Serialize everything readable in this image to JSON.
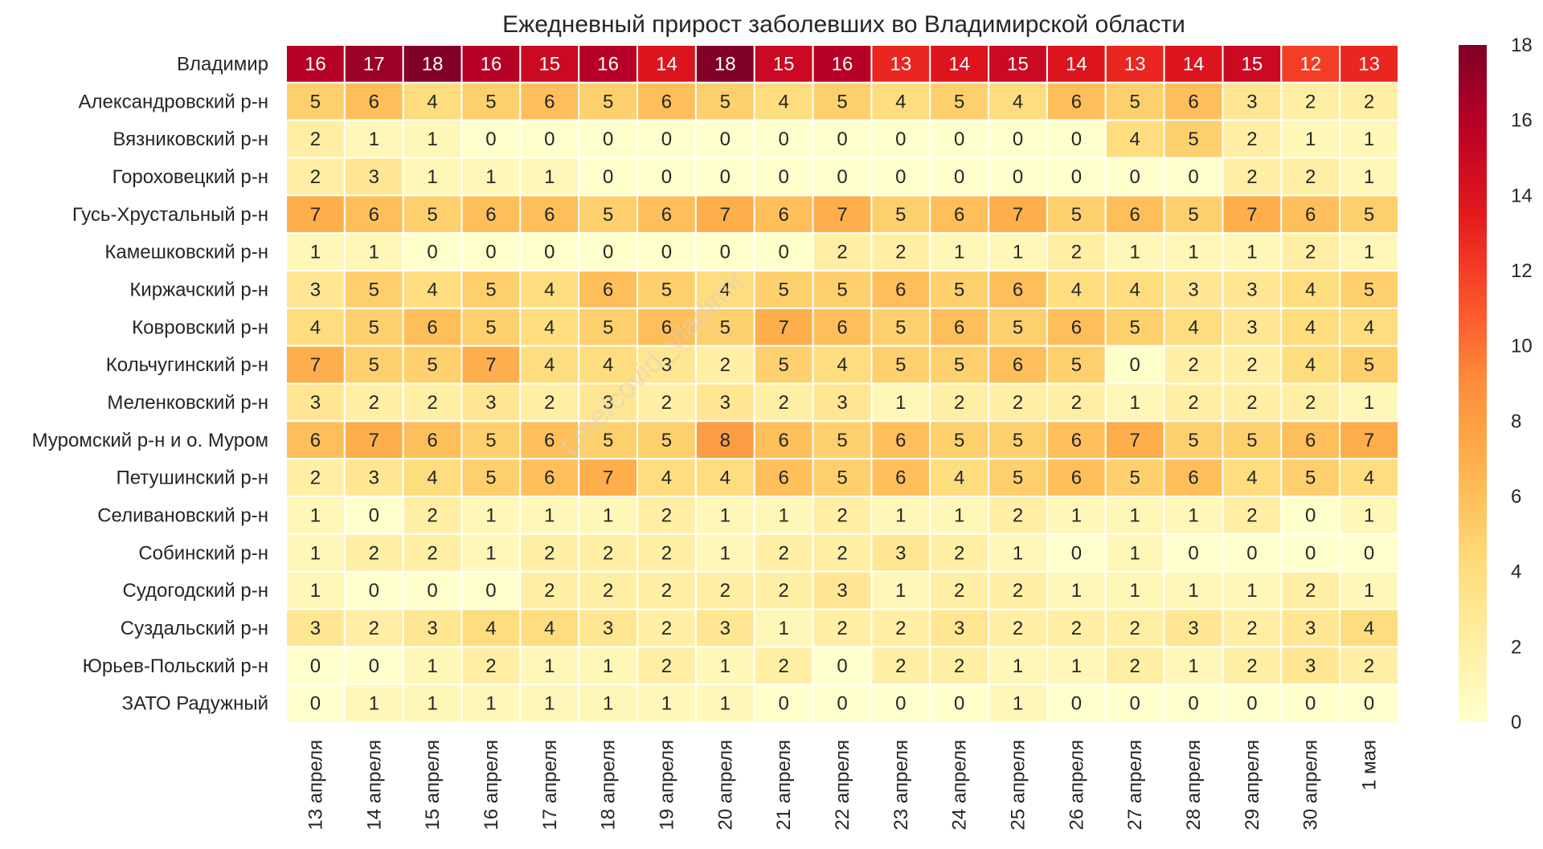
{
  "chart_data": {
    "type": "heatmap",
    "title": "Ежедневный прирост заболевших во Владимирской области",
    "watermark": "t.me/covid_vladimir",
    "x_labels": [
      "13 апреля",
      "14 апреля",
      "15 апреля",
      "16 апреля",
      "17 апреля",
      "18 апреля",
      "19 апреля",
      "20 апреля",
      "21 апреля",
      "22 апреля",
      "23 апреля",
      "24 апреля",
      "25 апреля",
      "26 апреля",
      "27 апреля",
      "28 апреля",
      "29 апреля",
      "30 апреля",
      "1 мая"
    ],
    "y_labels": [
      "Владимир",
      "Александровский р-н",
      "Вязниковский р-н",
      "Гороховецкий р-н",
      "Гусь-Хрустальный р-н",
      "Камешковский р-н",
      "Киржачский р-н",
      "Ковровский р-н",
      "Кольчугинский р-н",
      "Меленковский р-н",
      "Муромский р-н и о. Муром",
      "Петушинский р-н",
      "Селивановский р-н",
      "Собинский р-н",
      "Судогодский р-н",
      "Суздальский р-н",
      "Юрьев-Польский р-н",
      "ЗАТО Радужный"
    ],
    "values": [
      [
        16,
        17,
        18,
        16,
        15,
        16,
        14,
        18,
        15,
        16,
        13,
        14,
        15,
        14,
        13,
        14,
        15,
        12,
        13
      ],
      [
        5,
        6,
        4,
        5,
        6,
        5,
        6,
        5,
        4,
        5,
        4,
        5,
        4,
        6,
        5,
        6,
        3,
        2,
        2
      ],
      [
        2,
        1,
        1,
        0,
        0,
        0,
        0,
        0,
        0,
        0,
        0,
        0,
        0,
        0,
        4,
        5,
        2,
        1,
        1
      ],
      [
        2,
        3,
        1,
        1,
        1,
        0,
        0,
        0,
        0,
        0,
        0,
        0,
        0,
        0,
        0,
        0,
        2,
        2,
        1
      ],
      [
        7,
        6,
        5,
        6,
        6,
        5,
        6,
        7,
        6,
        7,
        5,
        6,
        7,
        5,
        6,
        5,
        7,
        6,
        5
      ],
      [
        1,
        1,
        0,
        0,
        0,
        0,
        0,
        0,
        0,
        2,
        2,
        1,
        1,
        2,
        1,
        1,
        1,
        2,
        1
      ],
      [
        3,
        5,
        4,
        5,
        4,
        6,
        5,
        4,
        5,
        5,
        6,
        5,
        6,
        4,
        4,
        3,
        3,
        4,
        5
      ],
      [
        4,
        5,
        6,
        5,
        4,
        5,
        6,
        5,
        7,
        6,
        5,
        6,
        5,
        6,
        5,
        4,
        3,
        4,
        4
      ],
      [
        7,
        5,
        5,
        7,
        4,
        4,
        3,
        2,
        5,
        4,
        5,
        5,
        6,
        5,
        0,
        2,
        2,
        4,
        5
      ],
      [
        3,
        2,
        2,
        3,
        2,
        3,
        2,
        3,
        2,
        3,
        1,
        2,
        2,
        2,
        1,
        2,
        2,
        2,
        1
      ],
      [
        6,
        7,
        6,
        5,
        6,
        5,
        5,
        8,
        6,
        5,
        6,
        5,
        5,
        6,
        7,
        5,
        5,
        6,
        7
      ],
      [
        2,
        3,
        4,
        5,
        6,
        7,
        4,
        4,
        6,
        5,
        6,
        4,
        5,
        6,
        5,
        6,
        4,
        5,
        4
      ],
      [
        1,
        0,
        2,
        1,
        1,
        1,
        2,
        1,
        1,
        2,
        1,
        1,
        2,
        1,
        1,
        1,
        2,
        0,
        1
      ],
      [
        1,
        2,
        2,
        1,
        2,
        2,
        2,
        1,
        2,
        2,
        3,
        2,
        1,
        0,
        1,
        0,
        0,
        0,
        0
      ],
      [
        1,
        0,
        0,
        0,
        2,
        2,
        2,
        2,
        2,
        3,
        1,
        2,
        2,
        1,
        1,
        1,
        1,
        2,
        1
      ],
      [
        3,
        2,
        3,
        4,
        4,
        3,
        2,
        3,
        1,
        2,
        2,
        3,
        2,
        2,
        2,
        3,
        2,
        3,
        4
      ],
      [
        0,
        0,
        1,
        2,
        1,
        1,
        2,
        1,
        2,
        0,
        2,
        2,
        1,
        1,
        2,
        1,
        2,
        3,
        2
      ],
      [
        0,
        1,
        1,
        1,
        1,
        1,
        1,
        1,
        0,
        0,
        0,
        0,
        1,
        0,
        0,
        0,
        0,
        0,
        0
      ]
    ],
    "colormap": "YlOrRd",
    "vmin": 0,
    "vmax": 18,
    "colorbar_ticks": [
      "0",
      "2",
      "4",
      "6",
      "8",
      "10",
      "12",
      "14",
      "16",
      "18"
    ],
    "colors": {
      "low": "#ffffcc",
      "high": "#800026",
      "cell_border": "#ffffff",
      "text_dark": "#262626",
      "text_light": "#ffffff"
    }
  }
}
